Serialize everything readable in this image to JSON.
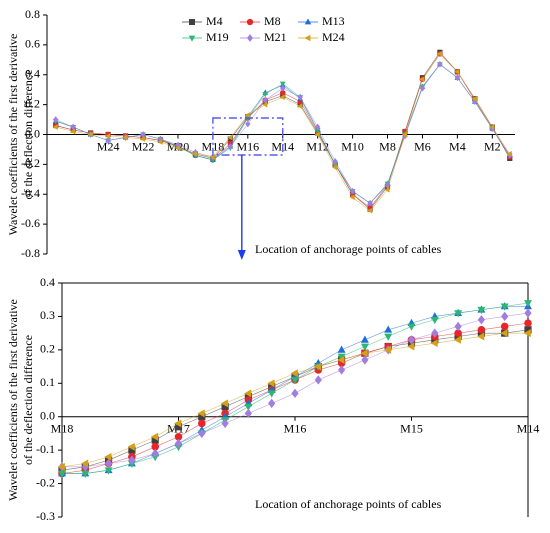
{
  "chart_data": [
    {
      "type": "line",
      "ylabel": [
        "Wavelet coefficients of the first  derivative",
        "of the deflection difference"
      ],
      "xlabel": "Location of anchorage points of cables",
      "x": [
        27,
        26,
        25,
        24,
        23,
        22,
        21,
        20,
        19,
        18,
        17,
        16,
        15,
        14,
        13,
        12,
        11,
        10,
        9,
        8,
        7,
        6,
        5,
        4,
        3,
        2,
        1
      ],
      "xlim": [
        27.5,
        0.7
      ],
      "xticks": [
        {
          "value": 24,
          "label": "M24"
        },
        {
          "value": 22,
          "label": "M22"
        },
        {
          "value": 20,
          "label": "M20"
        },
        {
          "value": 18,
          "label": "M18"
        },
        {
          "value": 16,
          "label": "M16"
        },
        {
          "value": 14,
          "label": "M14"
        },
        {
          "value": 12,
          "label": "M12"
        },
        {
          "value": 10,
          "label": "M10"
        },
        {
          "value": 8,
          "label": "M8"
        },
        {
          "value": 6,
          "label": "M6"
        },
        {
          "value": 4,
          "label": "M4"
        },
        {
          "value": 2,
          "label": "M2"
        }
      ],
      "ylim": [
        -0.8,
        0.8
      ],
      "yticks": [
        -0.8,
        -0.6,
        -0.4,
        -0.2,
        {
          "value": 0,
          "label": "0.0"
        },
        0.2,
        0.4,
        0.6,
        0.8
      ],
      "legend": "top",
      "series": [
        {
          "name": "M4",
          "color": "#404040",
          "marker": "square",
          "values": [
            0.06,
            0.03,
            0.01,
            0,
            -0.01,
            -0.02,
            -0.04,
            -0.08,
            -0.13,
            -0.16,
            -0.03,
            0.12,
            0.22,
            0.26,
            0.2,
            0.01,
            -0.2,
            -0.4,
            -0.5,
            -0.35,
            0.02,
            0.38,
            0.55,
            0.42,
            0.24,
            0.05,
            -0.16
          ]
        },
        {
          "name": "M8",
          "color": "#e8262a",
          "marker": "circle",
          "values": [
            0.06,
            0.03,
            0.01,
            0,
            -0.01,
            -0.02,
            -0.04,
            -0.08,
            -0.14,
            -0.17,
            -0.06,
            0.11,
            0.23,
            0.28,
            0.22,
            0.02,
            -0.2,
            -0.4,
            -0.49,
            -0.34,
            0.02,
            0.37,
            0.54,
            0.42,
            0.23,
            0.04,
            -0.15
          ]
        },
        {
          "name": "M13",
          "color": "#1f6fd8",
          "marker": "triangle-up",
          "values": [
            0.09,
            0.05,
            0.0,
            -0.04,
            -0.02,
            0.0,
            -0.03,
            -0.08,
            -0.14,
            -0.17,
            -0.08,
            0.12,
            0.28,
            0.33,
            0.24,
            0.03,
            -0.2,
            -0.38,
            -0.46,
            -0.33,
            0.0,
            0.32,
            0.47,
            0.38,
            0.22,
            0.04,
            -0.14
          ]
        },
        {
          "name": "M19",
          "color": "#2bb673",
          "marker": "triangle-down",
          "values": [
            0.09,
            0.05,
            0.0,
            -0.04,
            -0.02,
            0.0,
            -0.03,
            -0.08,
            -0.14,
            -0.17,
            -0.09,
            0.11,
            0.27,
            0.34,
            0.25,
            0.03,
            -0.2,
            -0.38,
            -0.46,
            -0.33,
            0.0,
            0.32,
            0.47,
            0.38,
            0.22,
            0.04,
            -0.14
          ]
        },
        {
          "name": "M21",
          "color": "#a27de0",
          "marker": "diamond",
          "values": [
            0.1,
            0.05,
            0.0,
            -0.04,
            -0.02,
            0.0,
            -0.03,
            -0.07,
            -0.12,
            -0.15,
            -0.08,
            0.07,
            0.23,
            0.31,
            0.25,
            0.05,
            -0.18,
            -0.38,
            -0.46,
            -0.34,
            -0.01,
            0.31,
            0.47,
            0.38,
            0.22,
            0.04,
            -0.14
          ]
        },
        {
          "name": "M24",
          "color": "#d4a017",
          "marker": "triangle-left",
          "values": [
            0.05,
            0.02,
            0.0,
            -0.01,
            -0.02,
            -0.03,
            -0.05,
            -0.09,
            -0.13,
            -0.15,
            -0.02,
            0.13,
            0.2,
            0.25,
            0.19,
            0.0,
            -0.22,
            -0.42,
            -0.51,
            -0.37,
            0.0,
            0.37,
            0.54,
            0.42,
            0.24,
            0.05,
            -0.13
          ]
        }
      ]
    },
    {
      "type": "line",
      "ylabel": [
        "Wavelet coefficients of the first  derivative",
        "of the deflection difference"
      ],
      "xlabel": "Location of anchorage points of cables",
      "x": [
        18,
        17.8,
        17.6,
        17.4,
        17.2,
        17,
        16.8,
        16.6,
        16.4,
        16.2,
        16,
        15.8,
        15.6,
        15.4,
        15.2,
        15,
        14.8,
        14.6,
        14.4,
        14.2,
        14
      ],
      "xlim": [
        18,
        14
      ],
      "xticks": [
        {
          "value": 18,
          "label": "M18"
        },
        {
          "value": 17,
          "label": "M17"
        },
        {
          "value": 16,
          "label": "M16"
        },
        {
          "value": 15,
          "label": "M15"
        },
        {
          "value": 14,
          "label": "M14"
        }
      ],
      "ylim": [
        -0.3,
        0.4
      ],
      "yticks": [
        -0.3,
        -0.2,
        -0.1,
        {
          "value": 0,
          "label": "0.0"
        },
        0.1,
        0.2,
        0.3,
        0.4
      ],
      "series": [
        {
          "name": "M4",
          "color": "#404040",
          "marker": "square",
          "values": [
            -0.16,
            -0.15,
            -0.13,
            -0.1,
            -0.07,
            -0.03,
            0.0,
            0.03,
            0.06,
            0.09,
            0.12,
            0.15,
            0.17,
            0.19,
            0.21,
            0.22,
            0.23,
            0.24,
            0.25,
            0.25,
            0.26
          ]
        },
        {
          "name": "M8",
          "color": "#e8262a",
          "marker": "circle",
          "values": [
            -0.17,
            -0.16,
            -0.14,
            -0.12,
            -0.09,
            -0.06,
            -0.02,
            0.01,
            0.05,
            0.08,
            0.11,
            0.14,
            0.16,
            0.19,
            0.21,
            0.23,
            0.24,
            0.25,
            0.26,
            0.27,
            0.28
          ]
        },
        {
          "name": "M13",
          "color": "#1f6fd8",
          "marker": "triangle-up",
          "values": [
            -0.17,
            -0.17,
            -0.16,
            -0.14,
            -0.11,
            -0.08,
            -0.04,
            0.0,
            0.04,
            0.08,
            0.12,
            0.16,
            0.2,
            0.23,
            0.26,
            0.28,
            0.3,
            0.31,
            0.32,
            0.33,
            0.33
          ]
        },
        {
          "name": "M19",
          "color": "#2bb673",
          "marker": "triangle-down",
          "values": [
            -0.17,
            -0.17,
            -0.16,
            -0.14,
            -0.12,
            -0.09,
            -0.05,
            -0.01,
            0.03,
            0.07,
            0.11,
            0.15,
            0.18,
            0.21,
            0.24,
            0.27,
            0.29,
            0.31,
            0.32,
            0.33,
            0.34
          ]
        },
        {
          "name": "M21",
          "color": "#a27de0",
          "marker": "diamond",
          "values": [
            -0.15,
            -0.15,
            -0.14,
            -0.13,
            -0.11,
            -0.08,
            -0.05,
            -0.02,
            0.01,
            0.04,
            0.07,
            0.11,
            0.14,
            0.17,
            0.2,
            0.23,
            0.25,
            0.27,
            0.29,
            0.3,
            0.31
          ]
        },
        {
          "name": "M24",
          "color": "#d4a017",
          "marker": "triangle-left",
          "values": [
            -0.15,
            -0.14,
            -0.12,
            -0.09,
            -0.06,
            -0.02,
            0.01,
            0.04,
            0.07,
            0.1,
            0.13,
            0.15,
            0.17,
            0.19,
            0.2,
            0.21,
            0.22,
            0.23,
            0.24,
            0.25,
            0.25
          ]
        }
      ]
    }
  ]
}
